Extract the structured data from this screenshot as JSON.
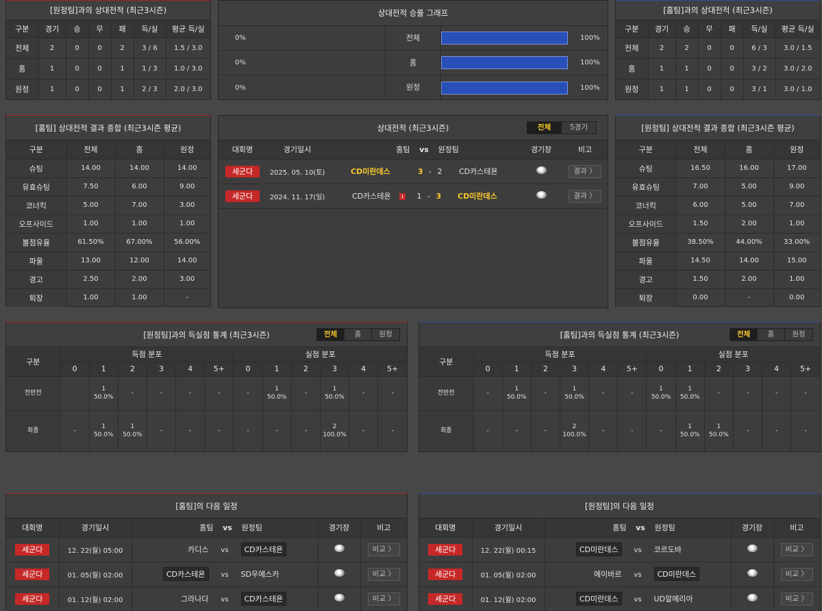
{
  "h2h_away_top": {
    "title": "[원정팀]과의 상대전적 (최근3시즌)",
    "headers": [
      "구분",
      "경기",
      "승",
      "무",
      "패",
      "득/실",
      "평균 득/실"
    ],
    "rows": [
      [
        "전체",
        "2",
        "0",
        "0",
        "2",
        "3 / 6",
        "1.5 / 3.0"
      ],
      [
        "홈",
        "1",
        "0",
        "0",
        "1",
        "1 / 3",
        "1.0 / 3.0"
      ],
      [
        "원정",
        "1",
        "0",
        "0",
        "1",
        "2 / 3",
        "2.0 / 3.0"
      ]
    ]
  },
  "win_graph": {
    "title": "상대전적 승률 그래프",
    "rows": [
      {
        "left": "0%",
        "label": "전체",
        "right": "100%"
      },
      {
        "left": "0%",
        "label": "홈",
        "right": "100%"
      },
      {
        "left": "0%",
        "label": "원정",
        "right": "100%"
      }
    ]
  },
  "h2h_home_top": {
    "title": "[홈팀]과의 상대전적 (최근3시즌)",
    "headers": [
      "구분",
      "경기",
      "승",
      "무",
      "패",
      "득/실",
      "평균 득/실"
    ],
    "rows": [
      [
        "전체",
        "2",
        "2",
        "0",
        "0",
        "6 / 3",
        "3.0 / 1.5"
      ],
      [
        "홈",
        "1",
        "1",
        "0",
        "0",
        "3 / 2",
        "3.0 / 2.0"
      ],
      [
        "원정",
        "1",
        "1",
        "0",
        "0",
        "3 / 1",
        "3.0 / 1.0"
      ]
    ]
  },
  "home_summary": {
    "title": "[홈팀] 상대전적 결과 종합 (최근3시즌 평균)",
    "headers": [
      "구분",
      "전체",
      "홈",
      "원정"
    ],
    "rows": [
      [
        "슈팅",
        "14.00",
        "14.00",
        "14.00"
      ],
      [
        "유효슈팅",
        "7.50",
        "6.00",
        "9.00"
      ],
      [
        "코너킥",
        "5.00",
        "7.00",
        "3.00"
      ],
      [
        "오프사이드",
        "1.00",
        "1.00",
        "1.00"
      ],
      [
        "볼점유율",
        "61.50%",
        "67.00%",
        "56.00%"
      ],
      [
        "파울",
        "13.00",
        "12.00",
        "14.00"
      ],
      [
        "경고",
        "2.50",
        "2.00",
        "3.00"
      ],
      [
        "퇴장",
        "1.00",
        "1.00",
        "-"
      ]
    ]
  },
  "h2h_matches": {
    "title": "상대전적 (최근3시즌)",
    "tabs": [
      "전체",
      "5경기"
    ],
    "headers": {
      "league": "대회명",
      "date": "경기일시",
      "home": "홈팀",
      "vs": "vs",
      "away": "원정팀",
      "venue": "경기장",
      "note": "비고"
    },
    "rows": [
      {
        "league": "세군다",
        "date": "2025. 05. 10(토)",
        "home": "CD미란데스",
        "hs": "3",
        "dash": "-",
        "as": "2",
        "away": "CD카스테욘",
        "btn": "결과 〉"
      },
      {
        "league": "세군다",
        "date": "2024. 11. 17(일)",
        "home": "CD카스테욘",
        "rc": "1",
        "hs": "1",
        "dash": "-",
        "as": "3",
        "away": "CD미란데스",
        "btn": "결과 〉"
      }
    ]
  },
  "away_summary": {
    "title": "[원정팀] 상대전적 결과 종합 (최근3시즌 평균)",
    "headers": [
      "구분",
      "전체",
      "홈",
      "원정"
    ],
    "rows": [
      [
        "슈팅",
        "16.50",
        "16.00",
        "17.00"
      ],
      [
        "유효슈팅",
        "7.00",
        "5.00",
        "9.00"
      ],
      [
        "코너킥",
        "6.00",
        "5.00",
        "7.00"
      ],
      [
        "오프사이드",
        "1.50",
        "2.00",
        "1.00"
      ],
      [
        "볼점유율",
        "38.50%",
        "44.00%",
        "33.00%"
      ],
      [
        "파울",
        "14.50",
        "14.00",
        "15.00"
      ],
      [
        "경고",
        "1.50",
        "2.00",
        "1.00"
      ],
      [
        "퇴장",
        "0.00",
        "-",
        "0.00"
      ]
    ]
  },
  "goal_dist_away": {
    "title": "[원정팀]과의 득실점 통계 (최근3시즌)",
    "tabs": [
      "전체",
      "홈",
      "원정"
    ],
    "h_gubun": "구분",
    "h_scored": "득점 분포",
    "h_conceded": "실점 분포",
    "cols": [
      "0",
      "1",
      "2",
      "3",
      "4",
      "5+"
    ],
    "rows": [
      {
        "label": "전반전",
        "cells": [
          [
            "",
            ""
          ],
          [
            "1",
            "50.0%"
          ],
          [
            "-",
            ""
          ],
          [
            "-",
            ""
          ],
          [
            "-",
            ""
          ],
          [
            "-",
            ""
          ],
          [
            "-",
            ""
          ],
          [
            "1",
            "50.0%"
          ],
          [
            "-",
            ""
          ],
          [
            "1",
            "50.0%"
          ],
          [
            "-",
            ""
          ],
          [
            "-",
            ""
          ]
        ]
      },
      {
        "label": "최종",
        "cells": [
          [
            "-",
            ""
          ],
          [
            "1",
            "50.0%"
          ],
          [
            "1",
            "50.0%"
          ],
          [
            "-",
            ""
          ],
          [
            "-",
            ""
          ],
          [
            "-",
            ""
          ],
          [
            "-",
            ""
          ],
          [
            "-",
            ""
          ],
          [
            "-",
            ""
          ],
          [
            "2",
            "100.0%"
          ],
          [
            "-",
            ""
          ],
          [
            "-",
            ""
          ]
        ]
      }
    ]
  },
  "goal_dist_home": {
    "title": "[홈팀]과의 득실점 통계 (최근3시즌)",
    "tabs": [
      "전체",
      "홈",
      "원정"
    ],
    "h_gubun": "구분",
    "h_scored": "득점 분포",
    "h_conceded": "실점 분포",
    "cols": [
      "0",
      "1",
      "2",
      "3",
      "4",
      "5+"
    ],
    "rows": [
      {
        "label": "전반전",
        "cells": [
          [
            "-",
            ""
          ],
          [
            "1",
            "50.0%"
          ],
          [
            "-",
            ""
          ],
          [
            "1",
            "50.0%"
          ],
          [
            "-",
            ""
          ],
          [
            "-",
            ""
          ],
          [
            "1",
            "50.0%"
          ],
          [
            "1",
            "50.0%"
          ],
          [
            "-",
            ""
          ],
          [
            "-",
            ""
          ],
          [
            "-",
            ""
          ],
          [
            "-",
            ""
          ]
        ]
      },
      {
        "label": "최종",
        "cells": [
          [
            "-",
            ""
          ],
          [
            "-",
            ""
          ],
          [
            "-",
            ""
          ],
          [
            "2",
            "100.0%"
          ],
          [
            "-",
            ""
          ],
          [
            "-",
            ""
          ],
          [
            "-",
            ""
          ],
          [
            "1",
            "50.0%"
          ],
          [
            "1",
            "50.0%"
          ],
          [
            "-",
            ""
          ],
          [
            "-",
            ""
          ],
          [
            "-",
            ""
          ]
        ]
      }
    ]
  },
  "next_home": {
    "title": "[홈팀]의 다음 일정",
    "headers": {
      "league": "대회명",
      "date": "경기일시",
      "home": "홈팀",
      "vs": "vs",
      "away": "원정팀",
      "venue": "경기장",
      "note": "비고"
    },
    "rows": [
      {
        "league": "세군다",
        "date": "12. 22(월) 05:00",
        "home": "카디스",
        "vs": "vs",
        "away": "CD카스테욘",
        "hl": "away",
        "btn": "비교 〉"
      },
      {
        "league": "세군다",
        "date": "01. 05(월) 02:00",
        "home": "CD카스테욘",
        "vs": "vs",
        "away": "SD우에스카",
        "hl": "home",
        "btn": "비교 〉"
      },
      {
        "league": "세군다",
        "date": "01. 12(월) 02:00",
        "home": "그라나다",
        "vs": "vs",
        "away": "CD카스테욘",
        "hl": "away",
        "btn": "비교 〉"
      }
    ]
  },
  "next_away": {
    "title": "[원정팀]의 다음 일정",
    "headers": {
      "league": "대회명",
      "date": "경기일시",
      "home": "홈팀",
      "vs": "vs",
      "away": "원정팀",
      "venue": "경기장",
      "note": "비고"
    },
    "rows": [
      {
        "league": "세군다",
        "date": "12. 22(월) 00:15",
        "home": "CD미란데스",
        "vs": "vs",
        "away": "코르도바",
        "hl": "home",
        "btn": "비교 〉"
      },
      {
        "league": "세군다",
        "date": "01. 05(월) 02:00",
        "home": "에이바르",
        "vs": "vs",
        "away": "CD미란데스",
        "hl": "away",
        "btn": "비교 〉"
      },
      {
        "league": "세군다",
        "date": "01. 12(월) 02:00",
        "home": "CD미란데스",
        "vs": "vs",
        "away": "UD알메리아",
        "hl": "home",
        "btn": "비교 〉"
      }
    ]
  }
}
